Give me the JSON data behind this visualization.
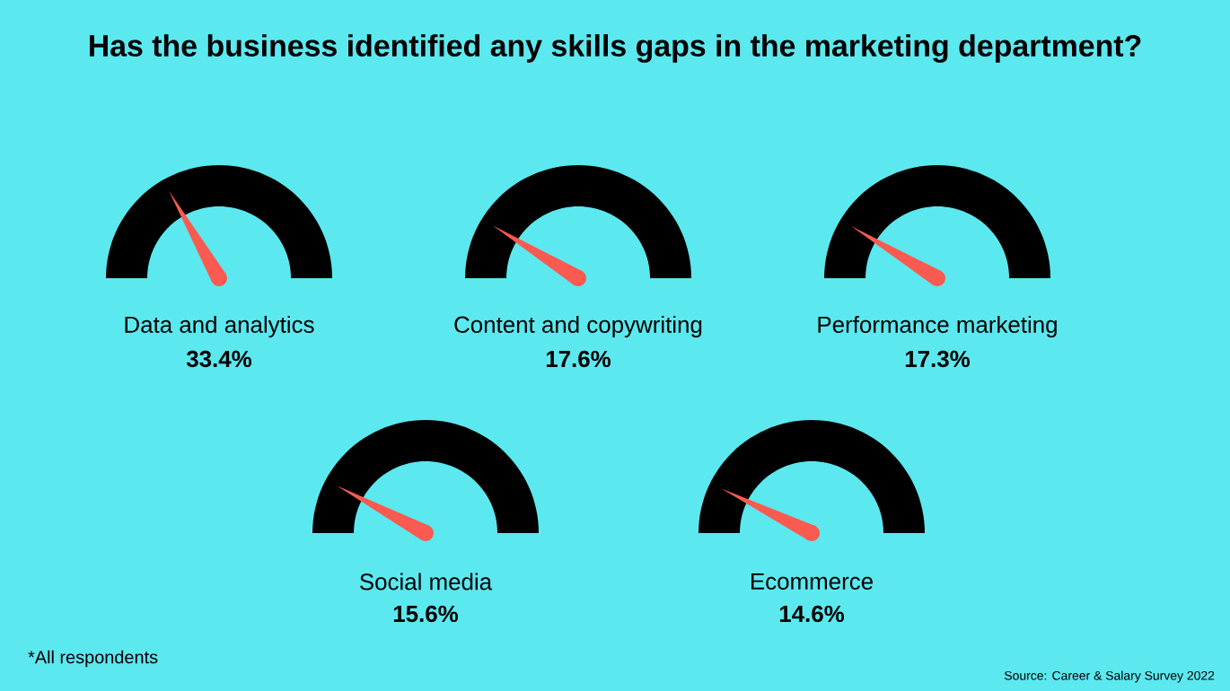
{
  "chart_data": {
    "type": "other",
    "title": "Has the business identified any skills gaps in the marketing department?",
    "categories": [
      "Data and analytics",
      "Content and copywriting",
      "Performance marketing",
      "Social media",
      "Ecommerce"
    ],
    "values": [
      33.4,
      17.6,
      17.3,
      15.6,
      14.6
    ],
    "value_labels": [
      "33.4%",
      "17.6%",
      "17.3%",
      "15.6%",
      "14.6%"
    ],
    "color": "#fa5a50",
    "annotations": [
      "*All respondents",
      "Source: Career & Salary Survey 2022"
    ]
  }
}
